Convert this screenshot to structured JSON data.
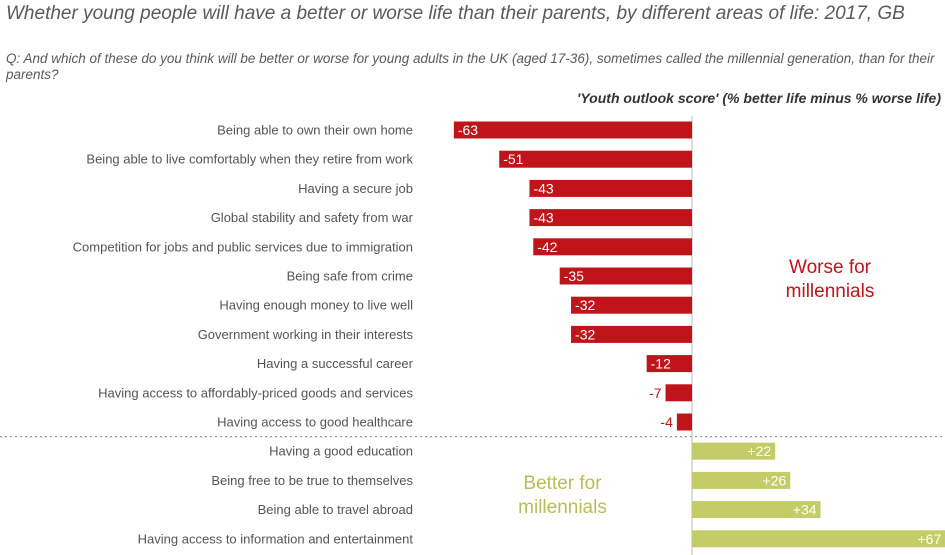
{
  "chart_data": {
    "type": "bar",
    "orientation": "horizontal",
    "title": "Whether young people will have a better or worse life than their parents, by different areas of life: 2017, GB",
    "subtitle": "Q: And which of these do you think will be better or worse for young adults in the UK (aged 17-36), sometimes called the millennial generation, than for their parents?",
    "score_label": "'Youth outlook score' (% better life minus % worse life)",
    "categories": [
      "Being able to own their own home",
      "Being able to live comfortably when they retire from work",
      "Having a secure job",
      "Global stability and safety from war",
      "Competition for jobs and public services due to immigration",
      "Being safe from crime",
      "Having enough money to live well",
      "Government working in their interests",
      "Having a successful career",
      "Having access to affordably-priced goods and services",
      "Having access to good healthcare",
      "Having a good education",
      "Being free to be true to themselves",
      "Being able to travel abroad",
      "Having access to information and entertainment"
    ],
    "values": [
      -63,
      -51,
      -43,
      -43,
      -42,
      -35,
      -32,
      -32,
      -12,
      -7,
      -4,
      22,
      26,
      34,
      67
    ],
    "value_labels": [
      "-63",
      "-51",
      "-43",
      "-43",
      "-42",
      "-35",
      "-32",
      "-32",
      "-12",
      "-7",
      "-4",
      "+22",
      "+26",
      "+34",
      "+67"
    ],
    "annotations": {
      "worse": "Worse for millennials",
      "better": "Better for millennials"
    },
    "colors": {
      "negative": "#c0141b",
      "positive": "#c3cc66",
      "text": "#555555"
    }
  }
}
